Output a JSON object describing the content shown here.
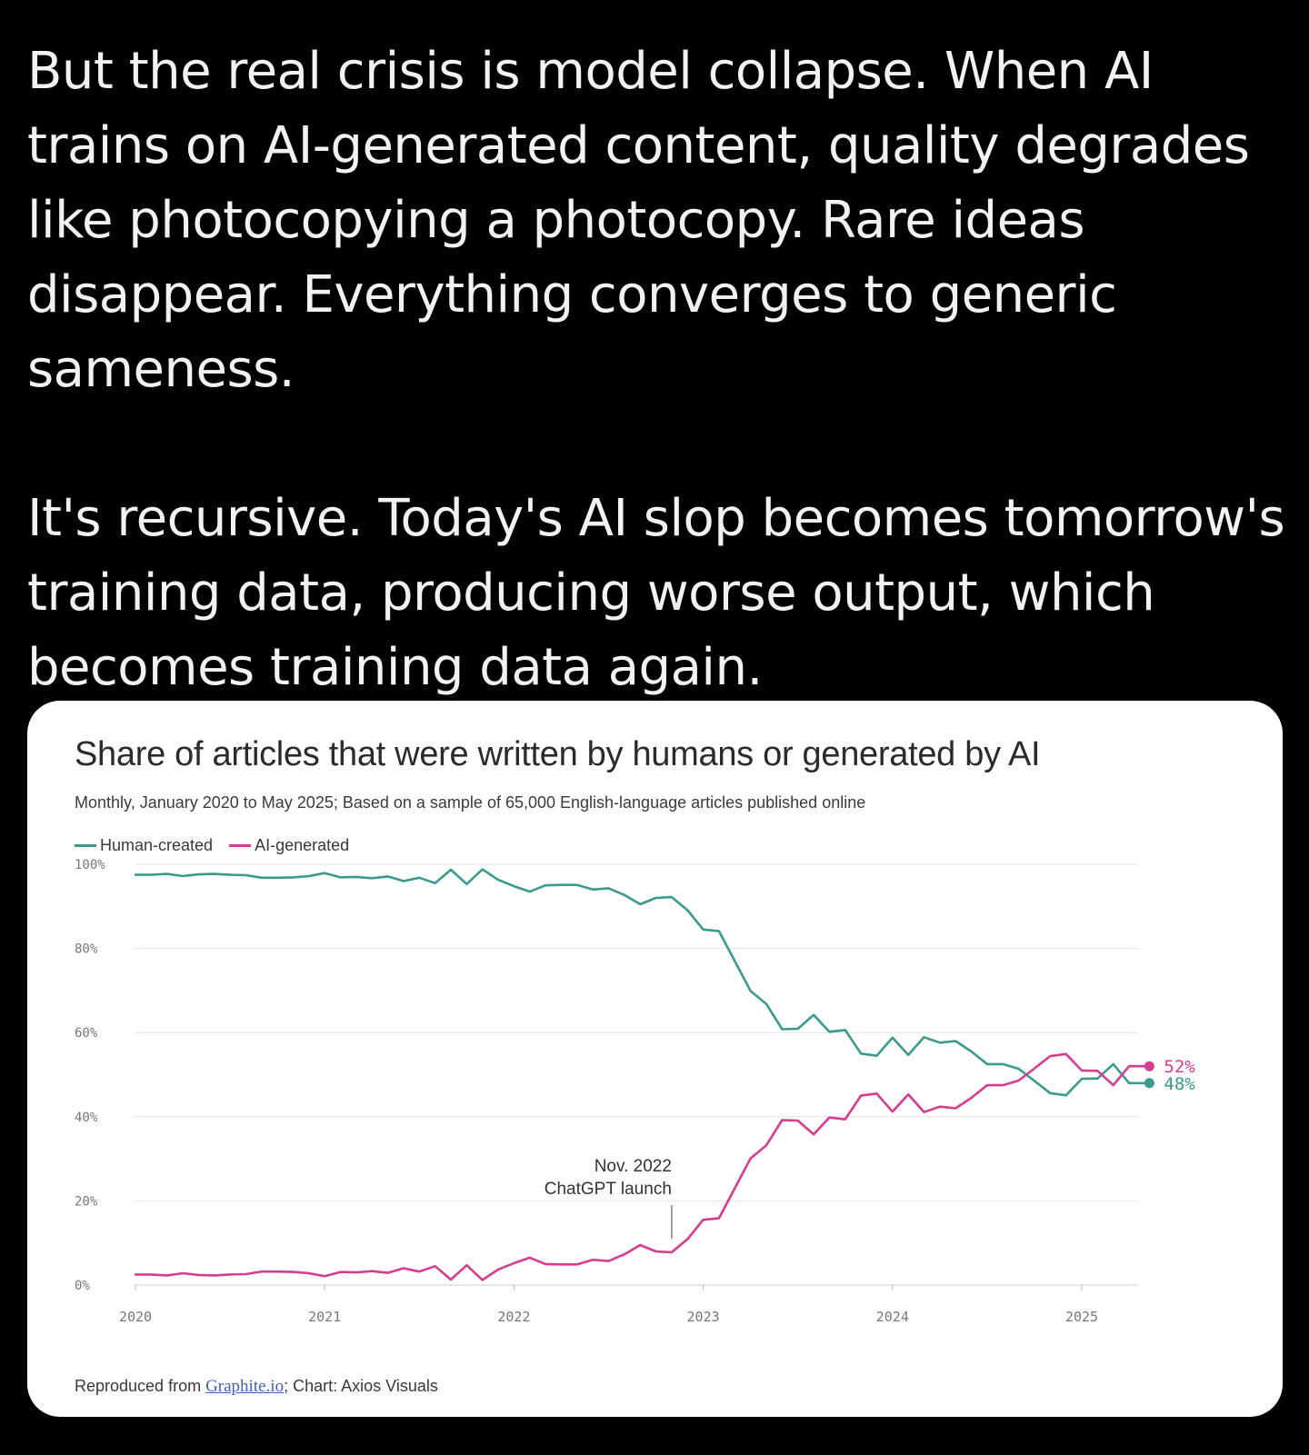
{
  "post": {
    "paragraph_1": "But the real crisis is model collapse. When AI trains on AI-generated content, quality degrades like photocopying a photocopy. Rare ideas disappear. Everything converges to generic sameness.",
    "paragraph_2": "It's recursive. Today's AI slop becomes tomorrow's training data, producing worse output, which becomes training data again."
  },
  "chart": {
    "source_prefix": "Reproduced from ",
    "source_link": "Graphite.io",
    "source_suffix": "; Chart: Axios Visuals"
  },
  "chart_data": {
    "type": "line",
    "title": "Share of articles that were written by humans or generated by AI",
    "subtitle": "Monthly, January 2020 to May 2025; Based on a sample of 65,000 English-language articles published online",
    "ylim": [
      0,
      100
    ],
    "yticks": [
      "0%",
      "20%",
      "40%",
      "60%",
      "80%",
      "100%"
    ],
    "yticks_values": [
      0,
      20,
      40,
      60,
      80,
      100
    ],
    "xticks": [
      "2020",
      "2021",
      "2022",
      "2023",
      "2024",
      "2025"
    ],
    "grid": true,
    "legend_position": "top-left",
    "x_start": "2020-01",
    "x_end": "2025-05",
    "series": [
      {
        "name": "Human-created",
        "color": "#3a9a8e",
        "end_label": "48%",
        "values": [
          97.5,
          97.5,
          97.7,
          97.2,
          97.6,
          97.7,
          97.5,
          97.4,
          96.8,
          96.8,
          96.9,
          97.2,
          97.9,
          96.9,
          97.0,
          96.7,
          97.1,
          96.0,
          96.8,
          95.5,
          98.7,
          95.3,
          98.8,
          96.3,
          94.8,
          93.5,
          95.0,
          95.1,
          95.1,
          94.0,
          94.3,
          92.7,
          90.5,
          92.0,
          92.2,
          89.1,
          84.5,
          84.1,
          77.0,
          69.9,
          66.8,
          60.8,
          60.9,
          64.2,
          60.2,
          60.6,
          55.0,
          54.5,
          58.8,
          54.7,
          58.9,
          57.6,
          58.0,
          55.5,
          52.5,
          52.5,
          51.4,
          48.5,
          45.6,
          45.1,
          49.0,
          49.1,
          52.5,
          48.0,
          48.0
        ],
        "end_value": 48
      },
      {
        "name": "AI-generated",
        "color": "#d63d91",
        "end_label": "52%",
        "values": [
          2.5,
          2.5,
          2.3,
          2.8,
          2.4,
          2.3,
          2.5,
          2.6,
          3.2,
          3.2,
          3.1,
          2.8,
          2.1,
          3.1,
          3.0,
          3.3,
          2.9,
          4.0,
          3.2,
          4.5,
          1.3,
          4.7,
          1.2,
          3.7,
          5.2,
          6.5,
          5.0,
          4.9,
          4.9,
          6.0,
          5.7,
          7.3,
          9.5,
          8.0,
          7.8,
          10.9,
          15.5,
          15.9,
          23.0,
          30.1,
          33.2,
          39.2,
          39.1,
          35.8,
          39.8,
          39.4,
          45.0,
          45.5,
          41.2,
          45.3,
          41.1,
          42.4,
          42.0,
          44.5,
          47.5,
          47.5,
          48.6,
          51.5,
          54.4,
          54.9,
          51.0,
          50.9,
          47.5,
          52.0,
          52.0
        ],
        "end_value": 52
      }
    ],
    "annotation": {
      "line1": "Nov. 2022",
      "line2": "ChatGPT launch",
      "x": "2022-11"
    },
    "legend_items": [
      "Human-created",
      "AI-generated"
    ]
  }
}
